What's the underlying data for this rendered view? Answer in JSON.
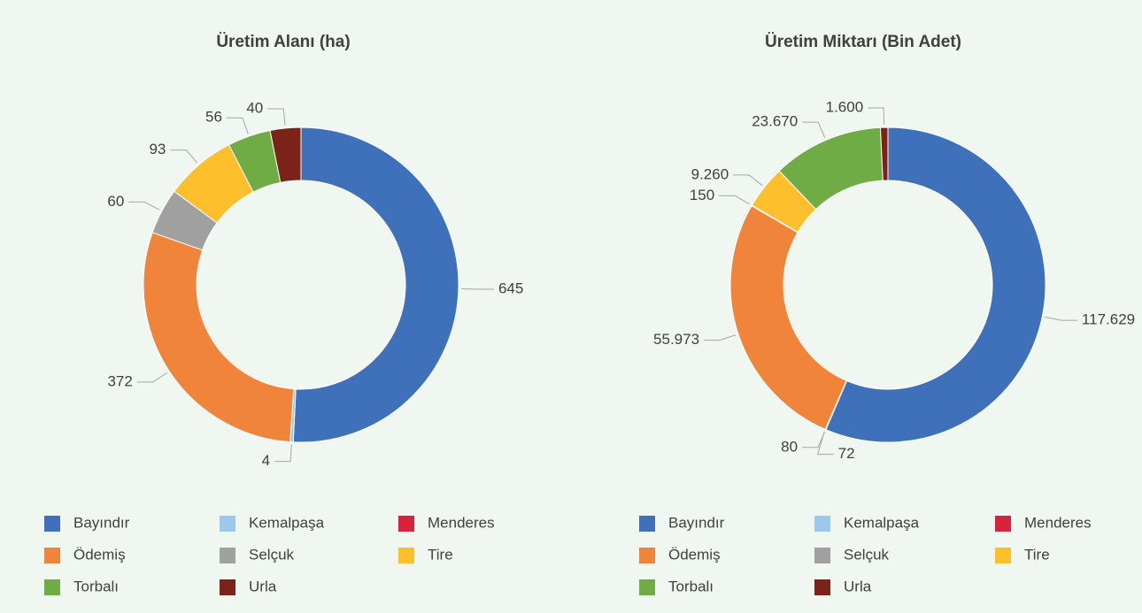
{
  "chart_data": [
    {
      "type": "donut",
      "title": "Üretim Alanı (ha)",
      "categories": [
        "Bayındır",
        "Kemalpaşa",
        "Menderes",
        "Ödemiş",
        "Selçuk",
        "Tire",
        "Torbalı",
        "Urla"
      ],
      "values": [
        645,
        4,
        null,
        372,
        60,
        93,
        56,
        40
      ],
      "colors": [
        "#3f70ba",
        "#9cc8ec",
        "#d8233a",
        "#f0843b",
        "#a0a0a0",
        "#fdbf2c",
        "#6fac45",
        "#7b2219"
      ]
    },
    {
      "type": "donut",
      "title": "Üretim Miktarı (Bin Adet)",
      "categories": [
        "Bayındır",
        "Kemalpaşa",
        "Menderes",
        "Ödemiş",
        "Selçuk",
        "Tire",
        "Torbalı",
        "Urla"
      ],
      "values": [
        117629,
        80,
        72,
        55973,
        150,
        9260,
        23670,
        1600
      ],
      "value_labels": [
        "117.629",
        "80",
        "72",
        "55.973",
        "150",
        "9.260",
        "23.670",
        "1.600"
      ],
      "colors": [
        "#3f70ba",
        "#9cc8ec",
        "#d8233a",
        "#f0843b",
        "#a0a0a0",
        "#fdbf2c",
        "#6fac45",
        "#7b2219"
      ]
    }
  ]
}
